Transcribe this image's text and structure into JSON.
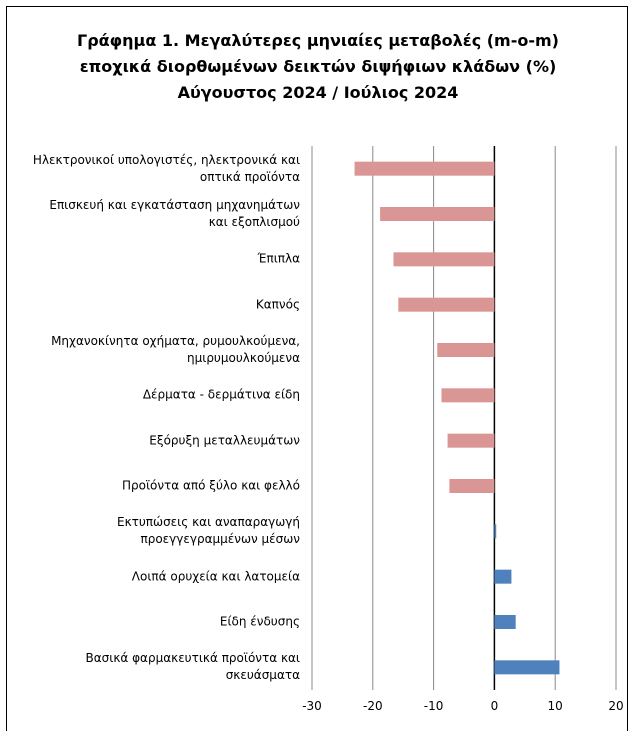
{
  "chart_data": {
    "type": "hbar",
    "title": "Γράφημα 1. Μεγαλύτερες μηνιαίες μεταβολές (m-o-m)\nεποχικά διορθωμένων δεικτών διψήφιων κλάδων (%)\nΑύγουστος 2024 / Ιούλιος  2024",
    "categories": [
      "Ηλεκτρονικοί υπολογιστές, ηλεκτρονικά και\nοπτικά προϊόντα",
      "Επισκευή και εγκατάσταση μηχανημάτων\nκαι εξοπλισμού",
      "Έπιπλα",
      "Καπνός",
      "Μηχανοκίνητα οχήματα, ρυμουλκούμενα,\nημιρυμουλκούμενα",
      "Δέρματα - δερμάτινα είδη",
      "Εξόρυξη μεταλλευμάτων",
      "Προϊόντα από ξύλο και φελλό",
      "Εκτυπώσεις και αναπαραγωγή\nπροεγγεγραμμένων μέσων",
      "Λοιπά ορυχεία και λατομεία",
      "Είδη ένδυσης",
      "Βασικά φαρμακευτικά προϊόντα και\nσκευάσματα"
    ],
    "values": [
      -23.0,
      -18.8,
      -16.6,
      -15.8,
      -9.4,
      -8.7,
      -7.7,
      -7.4,
      0.3,
      2.8,
      3.5,
      10.7
    ],
    "negative_color": "#d99694",
    "positive_color": "#4f81bd",
    "xlim": [
      -30,
      20
    ],
    "xticks": [
      -30,
      -20,
      -10,
      0,
      10,
      20
    ],
    "grid": true
  }
}
